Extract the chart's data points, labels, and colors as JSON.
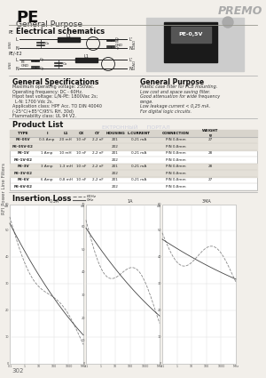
{
  "title": "PE",
  "subtitle": "General Purpose",
  "premo_text": "PREMO",
  "bg_color": "#f2efea",
  "sidebar_label": "RFI Power Line Filters",
  "elec_schema_title": "Electrical schematics",
  "gen_spec_title": "General Specifications",
  "gen_spec_lines": [
    "Maximum operating voltage: 250Vac.",
    "Operating frequency: DC - 60Hz.",
    "Hipot test voltage: L/N-PE: 1800Vac 2s;",
    "  L-N: 1700 Vdc 2s.",
    "Application class: HPF Acc. TO DIN 40040",
    "(-25°C/+85°C/95% RH, 30d)",
    "Flammability class: UL 94 V2."
  ],
  "gen_purpose_title": "General Purpose",
  "gen_purpose_lines": [
    "Plastic case filter for PCB mounting.",
    "Low cost and space saving filter.",
    "Good attenuation for wide frequency",
    "range.",
    "Low leakage current < 0,25 mA.",
    "For digital logic circuits."
  ],
  "product_list_title": "Product List",
  "insertion_loss_title": "Insertion Loss",
  "table_columns": [
    "TYPE",
    "I",
    "L1",
    "CX",
    "CY",
    "HOUSING",
    "L.CURRENT",
    "CONNECTION",
    "WEIGHT\ng"
  ],
  "table_rows": [
    [
      "PE-05V",
      "0,5 Amp",
      "20 mH",
      "10 nF",
      "2,2 nF",
      "201",
      "0,21 mA",
      "PIN 0,8mm",
      "27"
    ],
    [
      "PE-05V-E2",
      "",
      "",
      "",
      "",
      "202",
      "",
      "PIN 0,8mm",
      ""
    ],
    [
      "PE-1V",
      "1 Amp",
      "10 mH",
      "10 nF",
      "2,2 nF",
      "201",
      "0,21 mA",
      "PIN 0,8mm",
      "28"
    ],
    [
      "PE-1V-E2",
      "",
      "",
      "",
      "",
      "202",
      "",
      "PIN 0,8mm",
      ""
    ],
    [
      "PE-3V",
      "3 Amp",
      "1,3 mH",
      "10 nF",
      "2,2 nF",
      "201",
      "0,21 mA",
      "PIN 0,8mm",
      "28"
    ],
    [
      "PE-3V-E2",
      "",
      "",
      "",
      "",
      "202",
      "",
      "PIN 0,8mm",
      ""
    ],
    [
      "PE-6V",
      "6 Amp",
      "0,8 mH",
      "10 nF",
      "2,2 nF",
      "201",
      "0,21 mA",
      "PIN 0,8mm",
      "27"
    ],
    [
      "PE-6V-E2",
      "",
      "",
      "",
      "",
      "202",
      "",
      "PIN 0,8mm",
      ""
    ]
  ],
  "highlight_rows": [
    0,
    1,
    4,
    5
  ],
  "graph_titles": [
    "0,5A",
    "1A",
    "3MA"
  ],
  "page_number": "302",
  "ektronny_text": "ЕКТРОННЫЙ     ПОРТАЛ"
}
